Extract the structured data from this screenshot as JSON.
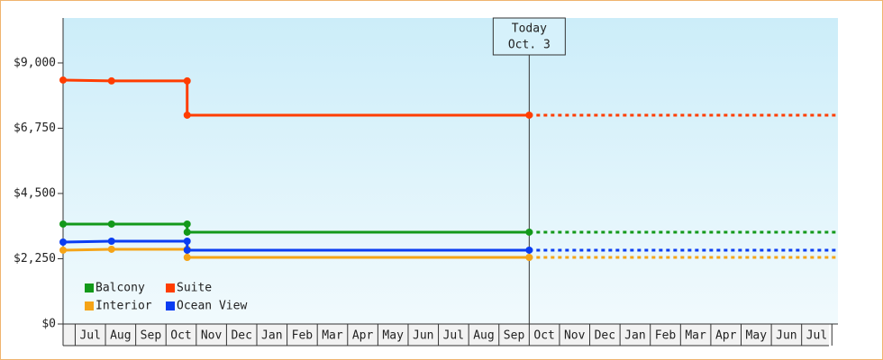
{
  "chart_data": {
    "type": "line",
    "categories": [
      "Jul",
      "Aug",
      "Sep",
      "Oct",
      "Nov",
      "Dec",
      "Jan",
      "Feb",
      "Mar",
      "Apr",
      "May",
      "Jun",
      "Jul",
      "Aug",
      "Sep",
      "Oct",
      "Nov",
      "Dec",
      "Jan",
      "Feb",
      "Mar",
      "Apr",
      "May",
      "Jun",
      "Jul"
    ],
    "xlim": [
      -0.4,
      25.2
    ],
    "ylim": [
      0,
      10550
    ],
    "yticks": [
      {
        "value": 0,
        "label": "$0"
      },
      {
        "value": 2250,
        "label": "$2,250"
      },
      {
        "value": 4500,
        "label": "$4,500"
      },
      {
        "value": 6750,
        "label": "$6,750"
      },
      {
        "value": 9000,
        "label": "$9,000"
      }
    ],
    "today": {
      "x": 15.0,
      "label_line1": "Today",
      "label_line2": "Oct. 3"
    },
    "series": [
      {
        "name": "Balcony",
        "color": "#13991a",
        "x": [
          -0.4,
          1.2,
          3.7,
          3.7,
          15.0
        ],
        "values": [
          3445,
          3445,
          3445,
          3166,
          3166
        ]
      },
      {
        "name": "Suite",
        "color": "#ff3d00",
        "x": [
          -0.4,
          1.2,
          3.7,
          3.7,
          15.0
        ],
        "values": [
          8410,
          8380,
          8380,
          7200,
          7200
        ]
      },
      {
        "name": "Interior",
        "color": "#f5a417",
        "x": [
          -0.4,
          1.2,
          3.7,
          3.7,
          15.0
        ],
        "values": [
          2545,
          2576,
          2576,
          2296,
          2296
        ]
      },
      {
        "name": "Ocean View",
        "color": "#0a3cf2",
        "x": [
          -0.4,
          1.2,
          3.7,
          3.7,
          15.0
        ],
        "values": [
          2824,
          2855,
          2855,
          2545,
          2545
        ]
      }
    ]
  }
}
